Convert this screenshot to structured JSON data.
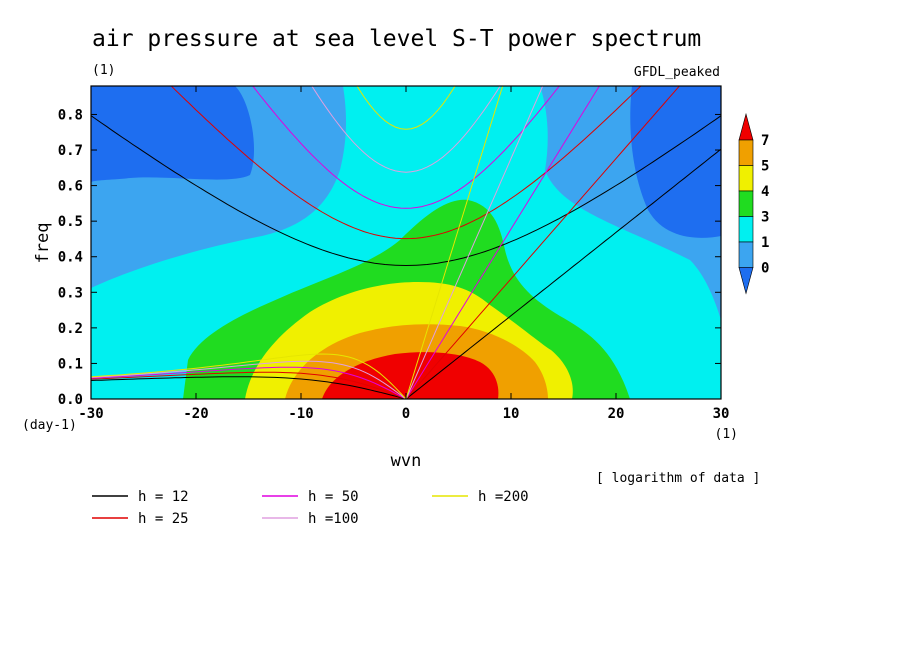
{
  "chart_data": {
    "type": "contour",
    "title": "air pressure at sea level S-T power spectrum",
    "subtitle": "(1)",
    "source_label": "GFDL_peaked",
    "xlabel": "wvn",
    "x_unit": "(1)",
    "ylabel": "freq",
    "y_unit": "(day-1)",
    "data_note": "[ logarithm of data ]",
    "xlim": [
      -30,
      30
    ],
    "ylim": [
      0,
      0.88
    ],
    "x_ticks": [
      -30,
      -20,
      -10,
      0,
      10,
      20,
      30
    ],
    "x_tick_labels": [
      "-30",
      "-20",
      "-10",
      "0",
      "10",
      "20",
      "30"
    ],
    "y_ticks": [
      0.0,
      0.1,
      0.2,
      0.3,
      0.4,
      0.5,
      0.6,
      0.7,
      0.8
    ],
    "y_tick_labels": [
      "0.0",
      "0.1",
      "0.2",
      "0.3",
      "0.4",
      "0.5",
      "0.6",
      "0.7",
      "0.8"
    ],
    "colorbar": {
      "labels": [
        "0",
        "1",
        "3",
        "4",
        "5",
        "7"
      ],
      "colors": [
        "#1e6ef0",
        "#3ca5f0",
        "#00f0f0",
        "#20dc20",
        "#f0f000",
        "#f0a000",
        "#f00000"
      ]
    },
    "dispersion_curves": [
      {
        "name": "h = 12",
        "h": 12,
        "color": "#000000"
      },
      {
        "name": "h = 25",
        "h": 25,
        "color": "#e00000"
      },
      {
        "name": "h = 50",
        "h": 50,
        "color": "#e000e0"
      },
      {
        "name": "h =100",
        "h": 100,
        "color": "#e0a0e0"
      },
      {
        "name": "h =200",
        "h": 200,
        "color": "#e6e600"
      }
    ]
  }
}
